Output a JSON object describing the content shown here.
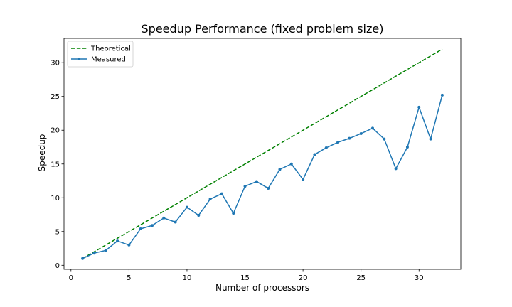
{
  "chart_data": {
    "type": "line",
    "title": "Speedup Performance (fixed problem size)",
    "xlabel": "Number of processors",
    "ylabel": "Speedup",
    "xlim": [
      -0.6,
      33.6
    ],
    "ylim": [
      -0.6,
      33.6
    ],
    "xticks": [
      0,
      5,
      10,
      15,
      20,
      25,
      30
    ],
    "yticks": [
      0,
      5,
      10,
      15,
      20,
      25,
      30
    ],
    "grid": false,
    "legend_position": "top-left",
    "series": [
      {
        "name": "Theoretical",
        "style": "dashed",
        "marker": "none",
        "color": "#008000",
        "x": [
          1,
          32
        ],
        "y": [
          1,
          32
        ]
      },
      {
        "name": "Measured",
        "style": "solid",
        "marker": "dot",
        "color": "#1f77b4",
        "x": [
          1,
          2,
          3,
          4,
          5,
          6,
          7,
          8,
          9,
          10,
          11,
          12,
          13,
          14,
          15,
          16,
          17,
          18,
          19,
          20,
          21,
          22,
          23,
          24,
          25,
          26,
          27,
          28,
          29,
          30,
          31,
          32
        ],
        "y": [
          1.0,
          1.8,
          2.2,
          3.6,
          3.0,
          5.4,
          5.9,
          7.0,
          6.4,
          8.6,
          7.4,
          9.8,
          10.6,
          7.7,
          11.7,
          12.4,
          11.4,
          14.2,
          15.0,
          12.7,
          16.4,
          17.4,
          18.2,
          18.8,
          19.5,
          20.3,
          18.7,
          14.3,
          17.5,
          23.4,
          18.7,
          25.2
        ]
      }
    ]
  }
}
